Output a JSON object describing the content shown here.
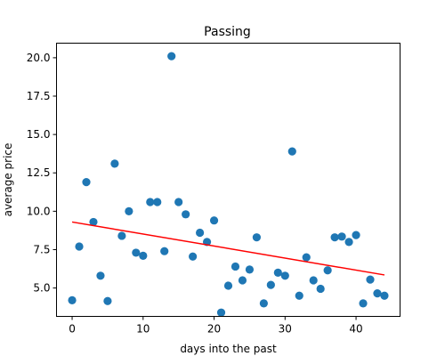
{
  "chart_data": {
    "type": "scatter",
    "title": "Passing",
    "xlabel": "days into the past",
    "ylabel": "average price",
    "xlim": [
      -2.2,
      46.2
    ],
    "ylim": [
      3.15,
      20.95
    ],
    "xticks": [
      {
        "value": 0,
        "label": "0"
      },
      {
        "value": 10,
        "label": "10"
      },
      {
        "value": 20,
        "label": "20"
      },
      {
        "value": 30,
        "label": "30"
      },
      {
        "value": 40,
        "label": "40"
      }
    ],
    "yticks": [
      {
        "value": 5.0,
        "label": "5.0"
      },
      {
        "value": 7.5,
        "label": "7.5"
      },
      {
        "value": 10.0,
        "label": "10.0"
      },
      {
        "value": 12.5,
        "label": "12.5"
      },
      {
        "value": 15.0,
        "label": "15.0"
      },
      {
        "value": 17.5,
        "label": "17.5"
      },
      {
        "value": 20.0,
        "label": "20.0"
      }
    ],
    "grid": false,
    "marker_color": "#1f77b4",
    "series": [
      {
        "x": [
          0,
          1,
          2,
          3,
          4,
          5,
          6,
          7,
          8,
          9,
          10,
          11,
          12,
          13,
          14,
          15,
          16,
          17,
          18,
          19,
          20,
          21,
          22,
          23,
          24,
          25,
          26,
          27,
          28,
          29,
          30,
          31,
          32,
          33,
          34,
          35,
          36,
          37,
          38,
          39,
          40,
          41,
          42,
          43,
          44
        ],
        "y": [
          4.2,
          7.7,
          11.9,
          9.3,
          5.8,
          4.15,
          13.1,
          8.4,
          10.0,
          7.3,
          7.1,
          10.6,
          10.6,
          7.4,
          20.1,
          10.6,
          9.8,
          7.05,
          8.6,
          8.0,
          9.4,
          3.4,
          5.15,
          6.4,
          5.5,
          6.2,
          8.3,
          4.0,
          5.2,
          6.0,
          5.8,
          13.9,
          4.5,
          7.0,
          5.5,
          4.95,
          6.15,
          8.3,
          8.35,
          8.0,
          8.45,
          4.0,
          5.55,
          4.65,
          4.5
        ]
      }
    ],
    "trend_line": {
      "color": "#ff0000",
      "x": [
        0,
        44
      ],
      "y": [
        9.3,
        5.85
      ]
    }
  }
}
